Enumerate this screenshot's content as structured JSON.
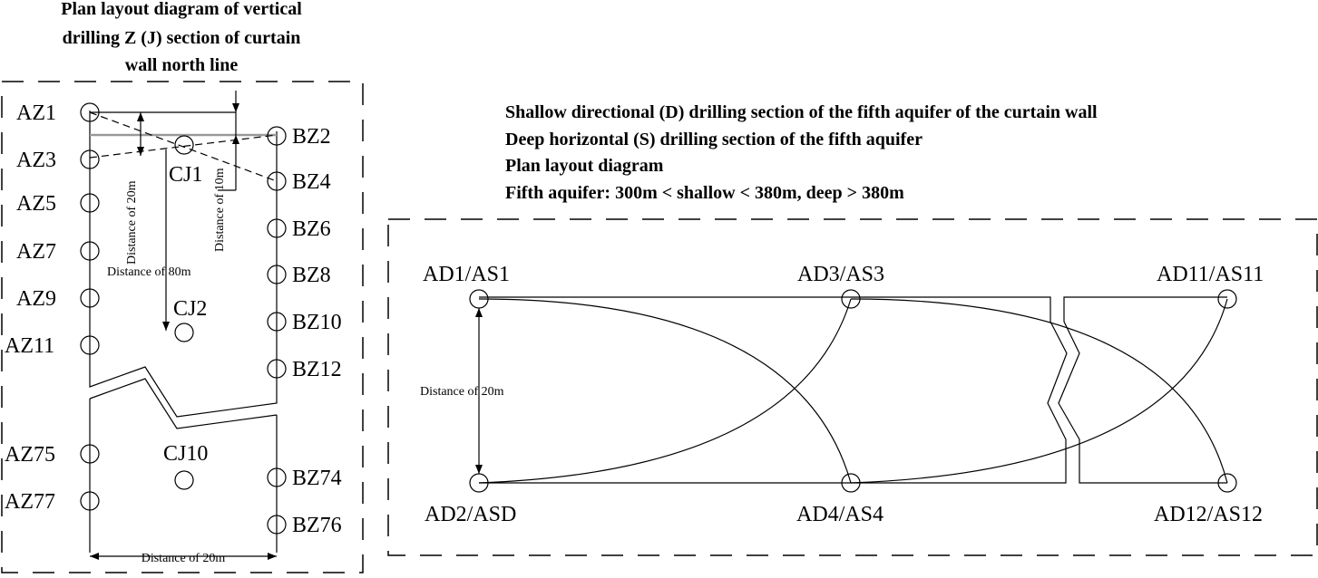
{
  "left": {
    "title_lines": [
      "Plan layout diagram of vertical",
      "drilling Z (J) section of curtain",
      "wall north line"
    ],
    "wells_a": [
      "AZ1",
      "AZ3",
      "AZ5",
      "AZ7",
      "AZ9",
      "AZ11",
      "AZ75",
      "AZ77"
    ],
    "wells_b": [
      "BZ2",
      "BZ4",
      "BZ6",
      "BZ8",
      "BZ10",
      "BZ12",
      "BZ74",
      "BZ76"
    ],
    "wells_c": [
      "CJ1",
      "CJ2",
      "CJ10"
    ],
    "dimensions": {
      "d20_vertical": "Distance of 20m",
      "d10_vertical": "Distance of 10m",
      "d80": "Distance of 80m",
      "d20_bottom": "Distance of 20m"
    }
  },
  "right": {
    "title_lines": [
      "Shallow directional (D) drilling section of the fifth aquifer of the curtain wall",
      "Deep horizontal (S) drilling section of the fifth aquifer",
      "Plan layout diagram",
      "Fifth aquifer: 300m < shallow < 380m, deep > 380m"
    ],
    "wells": [
      "AD1/AS1",
      "AD3/AS3",
      "AD11/AS11",
      "AD2/ASD",
      "AD4/AS4",
      "AD12/AS12"
    ],
    "dimension": "Distance of 20m"
  }
}
